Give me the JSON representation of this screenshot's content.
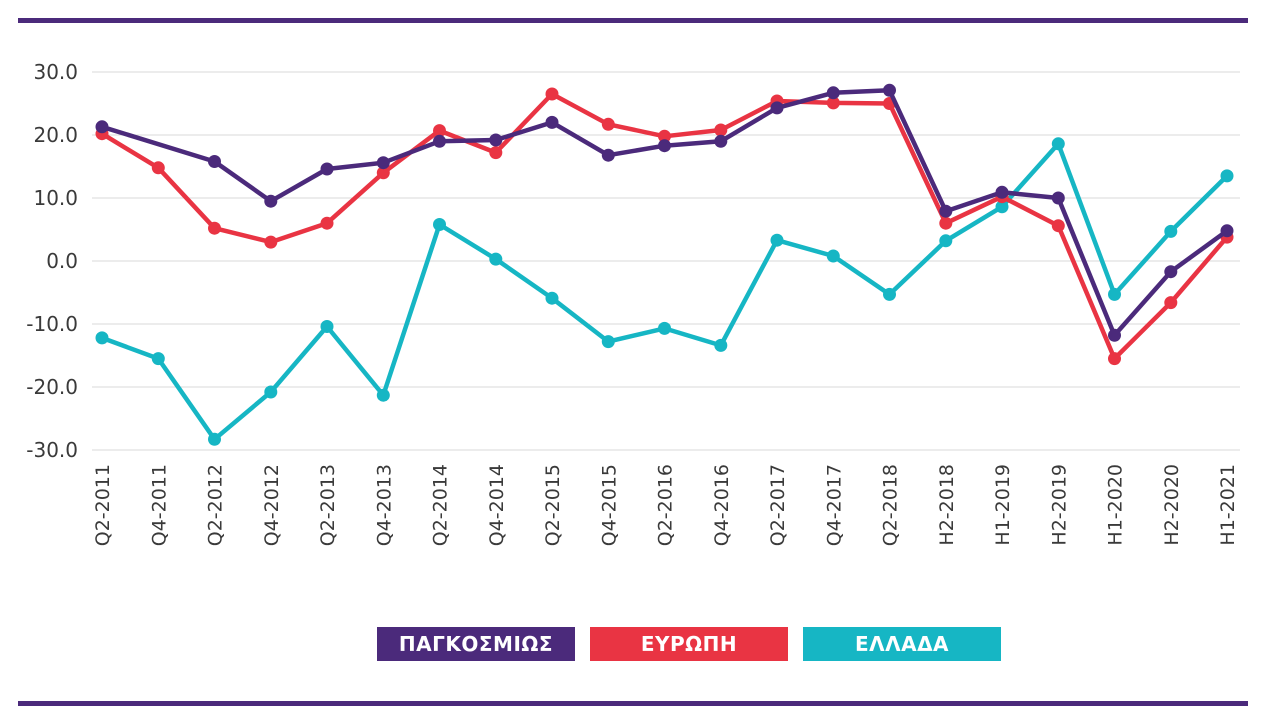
{
  "chart_data": {
    "type": "line",
    "title": "",
    "xlabel": "",
    "ylabel": "",
    "ylim": [
      -30,
      30
    ],
    "yticks": [
      30,
      20,
      10,
      0,
      -10,
      -20,
      -30
    ],
    "ytick_labels": [
      "30.0",
      "20.0",
      "10.0",
      "0.0",
      "-10.0",
      "-20.0",
      "-30.0"
    ],
    "grid": "horizontal",
    "legend_position": "bottom-center",
    "categories": [
      "Q2-2011",
      "Q4-2011",
      "Q2-2012",
      "Q4-2012",
      "Q2-2013",
      "Q4-2013",
      "Q2-2014",
      "Q4-2014",
      "Q2-2015",
      "Q4-2015",
      "Q2-2016",
      "Q4-2016",
      "Q2-2017",
      "Q4-2017",
      "Q2-2018",
      "H2-2018",
      "H1-2019",
      "H2-2019",
      "H1-2020",
      "H2-2020",
      "H1-2021"
    ],
    "series": [
      {
        "name": "ΠΑΓΚΟΣΜΙΩΣ",
        "color": "#4b2a7b",
        "values": [
          21.3,
          null,
          15.8,
          9.5,
          14.6,
          15.6,
          19.0,
          19.2,
          22.0,
          16.8,
          18.3,
          19.0,
          24.3,
          26.7,
          27.1,
          7.9,
          10.9,
          10.0,
          -11.8,
          -1.7,
          4.8
        ]
      },
      {
        "name": "ΕΥΡΩΠΗ",
        "color": "#e93443",
        "values": [
          20.2,
          14.8,
          5.2,
          3.0,
          6.0,
          14.0,
          20.7,
          17.2,
          26.5,
          21.7,
          19.8,
          20.8,
          25.4,
          25.1,
          25.0,
          6.0,
          10.2,
          5.6,
          -15.5,
          -6.6,
          3.8
        ]
      },
      {
        "name": "ΕΛΛΑΔΑ",
        "color": "#16b6c4",
        "values": [
          -12.2,
          -15.5,
          -28.3,
          -20.8,
          -10.4,
          -21.3,
          5.8,
          0.3,
          -5.9,
          -12.8,
          -10.7,
          -13.4,
          3.3,
          0.8,
          -5.3,
          3.2,
          8.6,
          18.6,
          -5.3,
          4.7,
          13.5
        ]
      }
    ]
  }
}
